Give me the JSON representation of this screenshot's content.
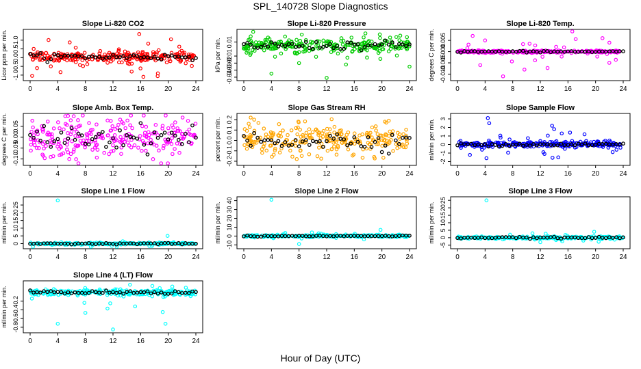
{
  "figure": {
    "title": "SPL_140728  Slope Diagnostics",
    "xlabel": "Hour of Day (UTC)"
  },
  "chart_data": [
    {
      "type": "scatter",
      "title": "Slope Li-820 CO2",
      "ylabel": "Licor ppm per min.",
      "color": "#ff0000",
      "xlim": [
        0,
        24
      ],
      "xticks": [
        0,
        4,
        8,
        12,
        16,
        20,
        24
      ],
      "ylim": [
        -1.2,
        1.5
      ],
      "yticks": [
        -1.0,
        -0.5,
        0.0,
        0.5,
        1.0
      ],
      "yticklabels": [
        "-1.0",
        "-0.5",
        "0.0",
        "0.5",
        "1.0"
      ],
      "center": 0.05,
      "spread": 0.15,
      "outlier_spread": 0.55,
      "outliers": [
        [
          15.8,
          1.35
        ],
        [
          16.4,
          -1.1
        ],
        [
          17.1,
          0.8
        ],
        [
          18.5,
          -0.9
        ],
        [
          20.4,
          1.05
        ],
        [
          1,
          -0.6
        ],
        [
          3,
          -0.5
        ],
        [
          14.7,
          -0.8
        ]
      ]
    },
    {
      "type": "scatter",
      "title": "Slope Li-820 Pressure",
      "ylabel": "kPa per min.",
      "color": "#00cc00",
      "xlim": [
        0,
        24
      ],
      "xticks": [
        0,
        4,
        8,
        12,
        16,
        20,
        24
      ],
      "ylim": [
        -0.042,
        0.025
      ],
      "yticks": [
        -0.04,
        -0.03,
        -0.02,
        -0.01,
        0.01
      ],
      "yticklabels": [
        "-0.04",
        "-0.03",
        "-0.02",
        "-0.01",
        "0.01"
      ],
      "center": 0.005,
      "spread": 0.005,
      "outlier_spread": 0.012,
      "outliers": [
        [
          4,
          -0.035
        ],
        [
          8,
          -0.02
        ],
        [
          12,
          -0.041
        ],
        [
          14.8,
          -0.022
        ],
        [
          24,
          -0.025
        ],
        [
          1,
          0.018
        ]
      ]
    },
    {
      "type": "scatter",
      "title": "Slope Li-820 Temp.",
      "ylabel": "degrees C per min.",
      "color": "#ff00ff",
      "xlim": [
        0,
        24
      ],
      "xticks": [
        0,
        4,
        8,
        12,
        16,
        20,
        24
      ],
      "ylim": [
        -0.012,
        0.009
      ],
      "yticks": [
        -0.01,
        -0.005,
        0.0,
        0.005
      ],
      "yticklabels": [
        "-0.010",
        "-0.005",
        "0.000",
        "0.005"
      ],
      "center": 0.0,
      "spread": 0.0003,
      "outlier_spread": 0.004,
      "outliers": [
        [
          2.2,
          0.007
        ],
        [
          3.3,
          -0.006
        ],
        [
          4,
          0.005
        ],
        [
          6.6,
          -0.011
        ],
        [
          9.7,
          -0.008
        ],
        [
          21,
          0.006
        ],
        [
          22,
          0.004
        ]
      ]
    },
    {
      "type": "scatter",
      "title": "Slope Amb. Box Temp.",
      "ylabel": "degrees C per min.",
      "color": "#ff00ff",
      "xlim": [
        0,
        24
      ],
      "xticks": [
        0,
        4,
        8,
        12,
        16,
        20,
        24
      ],
      "ylim": [
        -0.12,
        0.1
      ],
      "yticks": [
        -0.1,
        -0.05,
        0.0,
        0.05
      ],
      "yticklabels": [
        "-0.10",
        "-0.05",
        "0.00",
        "0.05"
      ],
      "center": 0.0,
      "spread": 0.045,
      "outlier_spread": 0.06,
      "outliers": []
    },
    {
      "type": "scatter",
      "title": "Slope Gas Stream RH",
      "ylabel": "percent per min.",
      "color": "#ffa500",
      "xlim": [
        0,
        24
      ],
      "xticks": [
        0,
        4,
        8,
        12,
        16,
        20,
        24
      ],
      "ylim": [
        -0.22,
        0.24
      ],
      "yticks": [
        -0.2,
        -0.1,
        0.0,
        0.1,
        0.2
      ],
      "yticklabels": [
        "-0.2",
        "-0.1",
        "0.0",
        "0.1",
        "0.2"
      ],
      "center": 0.0,
      "spread": 0.07,
      "outlier_spread": 0.11,
      "outliers": [
        [
          1,
          0.22
        ],
        [
          1.5,
          0.2
        ]
      ]
    },
    {
      "type": "scatter",
      "title": "Slope Sample Flow",
      "ylabel": "ml/min per min.",
      "color": "#0000ff",
      "xlim": [
        0,
        24
      ],
      "xticks": [
        0,
        4,
        8,
        12,
        16,
        20,
        24
      ],
      "ylim": [
        -2.2,
        3.4
      ],
      "yticks": [
        -2,
        -1,
        0,
        1,
        2,
        3
      ],
      "yticklabels": [
        "-2",
        "-1",
        "0",
        "1",
        "2",
        "3"
      ],
      "center": 0.0,
      "spread": 0.15,
      "outlier_spread": 0.6,
      "outliers": [
        [
          4.4,
          3.1
        ],
        [
          4.6,
          2.5
        ],
        [
          4.2,
          -1.6
        ],
        [
          13.7,
          2.2
        ],
        [
          14,
          1.8
        ],
        [
          15.1,
          1.3
        ],
        [
          16.3,
          1.4
        ],
        [
          14.6,
          -1.5
        ],
        [
          12.6,
          -1.1
        ],
        [
          18.4,
          1.2
        ]
      ]
    },
    {
      "type": "scatter",
      "title": "Slope Line 1 Flow",
      "ylabel": "ml/min per min.",
      "color": "#00ffff",
      "xlim": [
        0,
        24
      ],
      "xticks": [
        0,
        4,
        8,
        12,
        16,
        20,
        24
      ],
      "ylim": [
        -2,
        29
      ],
      "yticks": [
        0,
        5,
        10,
        15,
        20,
        25
      ],
      "yticklabels": [
        "0",
        "5",
        "10",
        "15",
        "20",
        "25"
      ],
      "center": 0.0,
      "spread": 0.3,
      "outlier_spread": 1.2,
      "outliers": [
        [
          4,
          28
        ],
        [
          19.9,
          5
        ]
      ]
    },
    {
      "type": "scatter",
      "title": "Slope Line 2 Flow",
      "ylabel": "ml/min per min.",
      "color": "#00ffff",
      "xlim": [
        0,
        24
      ],
      "xticks": [
        0,
        4,
        8,
        12,
        16,
        20,
        24
      ],
      "ylim": [
        -12,
        42
      ],
      "yticks": [
        -10,
        0,
        10,
        20,
        30,
        40
      ],
      "yticklabels": [
        "-10",
        "0",
        "10",
        "20",
        "30",
        "40"
      ],
      "center": 0.0,
      "spread": 0.6,
      "outlier_spread": 2.0,
      "outliers": [
        [
          4,
          41
        ],
        [
          19.8,
          7
        ],
        [
          8,
          -9
        ]
      ]
    },
    {
      "type": "scatter",
      "title": "Slope Line 3 Flow",
      "ylabel": "ml/min per min.",
      "color": "#00ffff",
      "xlim": [
        0,
        24
      ],
      "xticks": [
        0,
        4,
        8,
        12,
        16,
        20,
        24
      ],
      "ylim": [
        -6,
        26
      ],
      "yticks": [
        -5,
        0,
        5,
        10,
        15,
        20,
        25
      ],
      "yticklabels": [
        "-5",
        "0",
        "5",
        "10",
        "15",
        "20",
        "25"
      ],
      "center": 0.0,
      "spread": 0.4,
      "outlier_spread": 1.6,
      "outliers": [
        [
          4.2,
          25
        ],
        [
          19.8,
          4
        ],
        [
          12,
          -3
        ]
      ]
    },
    {
      "type": "scatter",
      "title": "Slope Line 4 (LT) Flow",
      "ylabel": "ml/min per min.",
      "color": "#00ffff",
      "xlim": [
        0,
        24
      ],
      "xticks": [
        0,
        4,
        8,
        12,
        16,
        20,
        24
      ],
      "ylim": [
        -0.88,
        0.22
      ],
      "yticks": [
        -0.8,
        -0.6,
        -0.4,
        -0.2
      ],
      "yticklabels": [
        "-0.8",
        "-0.6",
        "-0.4",
        "-0.2"
      ],
      "center": 0.0,
      "spread": 0.03,
      "outlier_spread": 0.12,
      "outliers": [
        [
          4,
          -0.72
        ],
        [
          8,
          -0.47
        ],
        [
          11.2,
          -0.37
        ],
        [
          12,
          -0.85
        ],
        [
          11.6,
          -0.25
        ],
        [
          15.2,
          -0.32
        ],
        [
          17.7,
          0.15
        ],
        [
          19.6,
          -0.72
        ],
        [
          19.2,
          -0.45
        ]
      ]
    }
  ]
}
